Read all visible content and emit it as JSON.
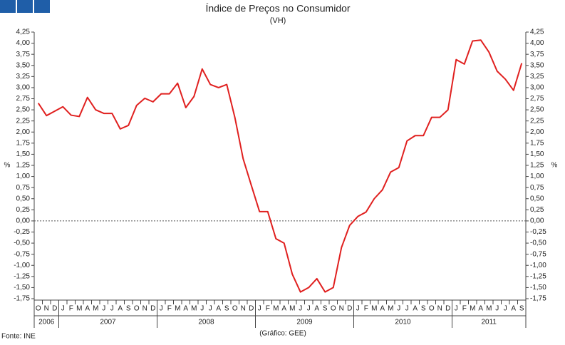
{
  "chart_data": {
    "type": "line",
    "title": "Índice de Preços no Consumidor",
    "subtitle": "(VH)",
    "y_label": "%",
    "source": "Fonte: INE",
    "note": "(Gráfico: GEE)",
    "groups": [
      {
        "name": "2006",
        "categories": [
          "O",
          "N",
          "D"
        ]
      },
      {
        "name": "2007",
        "categories": [
          "J",
          "F",
          "M",
          "A",
          "M",
          "J",
          "J",
          "A",
          "S",
          "O",
          "N",
          "D"
        ]
      },
      {
        "name": "2008",
        "categories": [
          "J",
          "F",
          "M",
          "A",
          "M",
          "J",
          "J",
          "A",
          "S",
          "O",
          "N",
          "D"
        ]
      },
      {
        "name": "2009",
        "categories": [
          "J",
          "F",
          "M",
          "A",
          "M",
          "J",
          "J",
          "A",
          "S",
          "O",
          "N",
          "D"
        ]
      },
      {
        "name": "2010",
        "categories": [
          "J",
          "F",
          "M",
          "A",
          "M",
          "J",
          "J",
          "A",
          "S",
          "O",
          "N",
          "D"
        ]
      },
      {
        "name": "2011",
        "categories": [
          "J",
          "F",
          "M",
          "A",
          "M",
          "J",
          "J",
          "A",
          "S"
        ]
      }
    ],
    "series": [
      {
        "color": "#e0201f",
        "values": [
          2.65,
          2.37,
          2.47,
          2.57,
          2.38,
          2.35,
          2.78,
          2.5,
          2.42,
          2.42,
          2.07,
          2.15,
          2.6,
          2.76,
          2.68,
          2.86,
          2.86,
          3.1,
          2.55,
          2.8,
          3.42,
          3.07,
          3.0,
          3.07,
          2.32,
          1.4,
          0.8,
          0.21,
          0.21,
          -0.4,
          -0.5,
          -1.2,
          -1.6,
          -1.5,
          -1.3,
          -1.6,
          -1.5,
          -0.6,
          -0.1,
          0.1,
          0.2,
          0.5,
          0.7,
          1.1,
          1.2,
          1.8,
          1.92,
          1.92,
          2.33,
          2.33,
          2.5,
          3.63,
          3.53,
          4.05,
          4.07,
          3.8,
          3.37,
          3.19,
          2.94,
          3.55
        ]
      }
    ],
    "ylim": [
      -1.75,
      4.25
    ],
    "yticks": [
      {
        "value": -1.75,
        "label": "-1,75"
      },
      {
        "value": -1.5,
        "label": "-1,50"
      },
      {
        "value": -1.25,
        "label": "-1,25"
      },
      {
        "value": -1,
        "label": "-1,00"
      },
      {
        "value": -0.75,
        "label": "-0,75"
      },
      {
        "value": -0.5,
        "label": "-0,50"
      },
      {
        "value": -0.25,
        "label": "-0,25"
      },
      {
        "value": 0,
        "label": "0,00"
      },
      {
        "value": 0.25,
        "label": "0,25"
      },
      {
        "value": 0.5,
        "label": "0,50"
      },
      {
        "value": 0.75,
        "label": "0,75"
      },
      {
        "value": 1,
        "label": "1,00"
      },
      {
        "value": 1.25,
        "label": "1,25"
      },
      {
        "value": 1.5,
        "label": "1,50"
      },
      {
        "value": 1.75,
        "label": "1,75"
      },
      {
        "value": 2,
        "label": "2,00"
      },
      {
        "value": 2.25,
        "label": "2,25"
      },
      {
        "value": 2.5,
        "label": "2,50"
      },
      {
        "value": 2.75,
        "label": "2,75"
      },
      {
        "value": 3,
        "label": "3,00"
      },
      {
        "value": 3.25,
        "label": "3,25"
      },
      {
        "value": 3.5,
        "label": "3,50"
      },
      {
        "value": 3.75,
        "label": "3,75"
      },
      {
        "value": 4,
        "label": "4,00"
      },
      {
        "value": 4.25,
        "label": "4,25"
      }
    ],
    "grid": false
  }
}
